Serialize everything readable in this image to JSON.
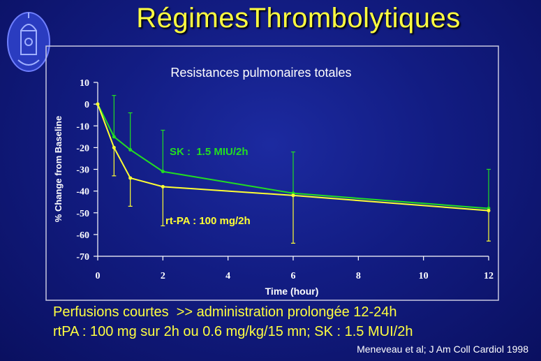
{
  "slide_title": "RégimesThrombolytiques",
  "footer": {
    "line1": "Perfusions courtes  >> administration prolongée 12-24h",
    "line2": "rtPA : 100 mg sur 2h ou 0.6 mg/kg/15 mn; SK : 1.5 MUI/2h",
    "citation": "Meneveau et al; J Am Coll Cardiol 1998"
  },
  "colors": {
    "title": "#ffff40",
    "sk": "#22dd22",
    "rtpa": "#ffff33",
    "axes": "#ffffff"
  },
  "chart_data": {
    "type": "line",
    "title": "Resistances pulmonaires totales",
    "xlabel": "Time (hour)",
    "ylabel": "% Change from Baseline",
    "xlim": [
      0,
      12
    ],
    "ylim": [
      -70,
      10
    ],
    "x_ticks": [
      0,
      2,
      4,
      6,
      8,
      10,
      12
    ],
    "y_ticks": [
      10,
      0,
      -10,
      -20,
      -30,
      -40,
      -50,
      -60,
      -70
    ],
    "x_tick_labels": [
      "0",
      "2",
      "4",
      "6",
      "8",
      "10",
      "12"
    ],
    "y_tick_labels": [
      "10",
      "0",
      "-10",
      "-20",
      "-30",
      "-40",
      "-50",
      "-60",
      "-70"
    ],
    "grid": false,
    "series": [
      {
        "name": "SK :  1.5 MIU/2h",
        "color": "#22dd22",
        "x": [
          0,
          0.5,
          1,
          2,
          6,
          12
        ],
        "y": [
          0,
          -15,
          -21,
          -31,
          -41,
          -48
        ],
        "error_upper": [
          null,
          4,
          -4,
          -12,
          -22,
          -30
        ]
      },
      {
        "name": "rt-PA : 100 mg/2h",
        "color": "#ffff33",
        "x": [
          0,
          0.5,
          1,
          2,
          6,
          12
        ],
        "y": [
          0,
          -20,
          -34,
          -38,
          -42,
          -49
        ],
        "error_lower": [
          null,
          -33,
          -47,
          -56,
          -64,
          -63
        ]
      }
    ]
  }
}
